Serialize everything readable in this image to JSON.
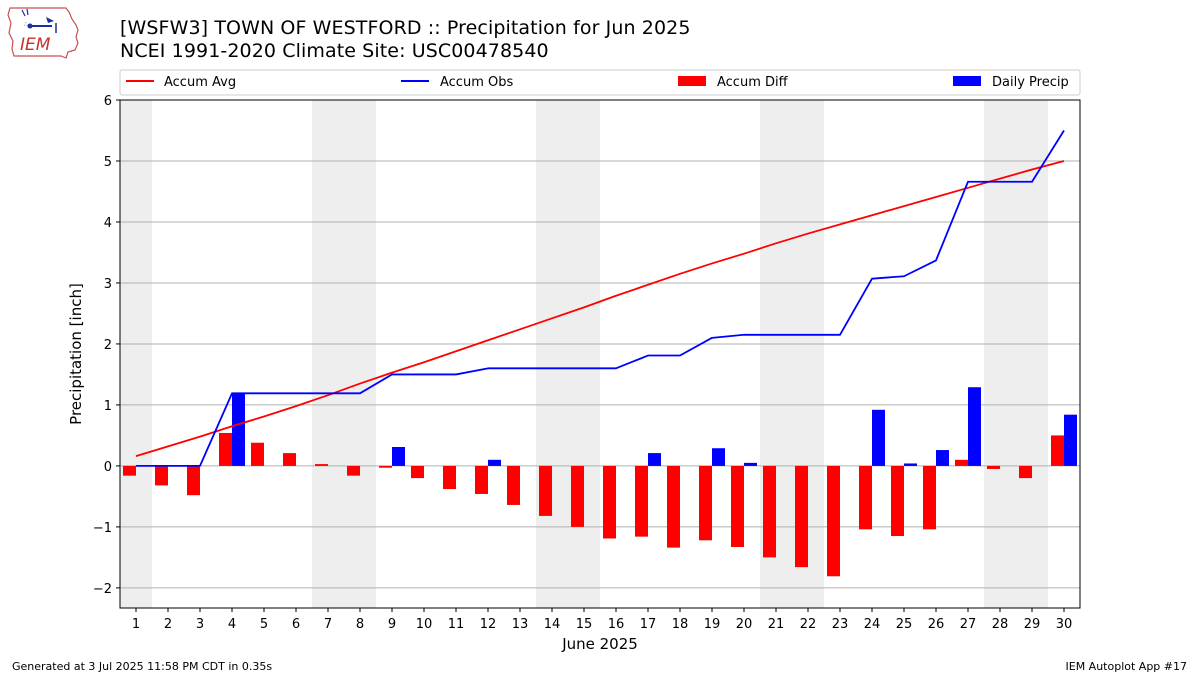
{
  "header": {
    "title_line1": "[WSFW3] TOWN OF WESTFORD :: Precipitation for Jun 2025",
    "title_line2": "NCEI 1991-2020 Climate Site: USC00478540"
  },
  "logo": {
    "text": "IEM"
  },
  "footer": {
    "generated": "Generated at 3 Jul 2025 11:58 PM CDT in 0.35s",
    "app": "IEM Autoplot App #17"
  },
  "colors": {
    "avg": "#ff0000",
    "obs": "#0000ff",
    "diff": "#ff0000",
    "daily": "#0000ff",
    "weekend": "#eeeeee",
    "grid": "#b0b0b0"
  },
  "chart_data": {
    "type": "bar",
    "xlabel": "June 2025",
    "ylabel": "Precipitation [inch]",
    "ylim": [
      -2.33,
      6
    ],
    "yticks": [
      -2,
      -1,
      0,
      1,
      2,
      3,
      4,
      5,
      6
    ],
    "categories": [
      "1",
      "2",
      "3",
      "4",
      "5",
      "6",
      "7",
      "8",
      "9",
      "10",
      "11",
      "12",
      "13",
      "14",
      "15",
      "16",
      "17",
      "18",
      "19",
      "20",
      "21",
      "22",
      "23",
      "24",
      "25",
      "26",
      "27",
      "28",
      "29",
      "30"
    ],
    "weekend_spans": [
      [
        1,
        1
      ],
      [
        7,
        8
      ],
      [
        14,
        15
      ],
      [
        21,
        22
      ],
      [
        28,
        29
      ]
    ],
    "grid": "horizontal",
    "legend_position": "top",
    "series": [
      {
        "name": "Accum Avg",
        "kind": "line",
        "values": [
          0.16,
          0.32,
          0.48,
          0.65,
          0.81,
          0.98,
          1.16,
          1.35,
          1.53,
          1.7,
          1.88,
          2.06,
          2.24,
          2.42,
          2.6,
          2.79,
          2.97,
          3.15,
          3.32,
          3.48,
          3.65,
          3.81,
          3.96,
          4.11,
          4.26,
          4.41,
          4.56,
          4.71,
          4.86,
          5.0
        ]
      },
      {
        "name": "Accum Obs",
        "kind": "line",
        "values": [
          0.0,
          0.0,
          0.0,
          1.19,
          1.19,
          1.19,
          1.19,
          1.19,
          1.5,
          1.5,
          1.5,
          1.6,
          1.6,
          1.6,
          1.6,
          1.6,
          1.81,
          1.81,
          2.1,
          2.15,
          2.15,
          2.15,
          2.15,
          3.07,
          3.11,
          3.37,
          4.66,
          4.66,
          4.66,
          5.5
        ]
      },
      {
        "name": "Accum Diff",
        "kind": "bar",
        "values": [
          -0.16,
          -0.32,
          -0.48,
          0.54,
          0.38,
          0.21,
          0.03,
          -0.16,
          -0.03,
          -0.2,
          -0.38,
          -0.46,
          -0.64,
          -0.82,
          -1.0,
          -1.19,
          -1.16,
          -1.34,
          -1.22,
          -1.33,
          -1.5,
          -1.66,
          -1.81,
          -1.04,
          -1.15,
          -1.04,
          0.1,
          -0.05,
          -0.2,
          0.5
        ]
      },
      {
        "name": "Daily Precip",
        "kind": "bar",
        "values": [
          0,
          0,
          0,
          1.19,
          0,
          0,
          0,
          0,
          0.31,
          0,
          0,
          0.1,
          0,
          0,
          0,
          0,
          0.21,
          0,
          0.29,
          0.05,
          0,
          0,
          0,
          0.92,
          0.04,
          0.26,
          1.29,
          0,
          0,
          0.84
        ]
      }
    ]
  }
}
